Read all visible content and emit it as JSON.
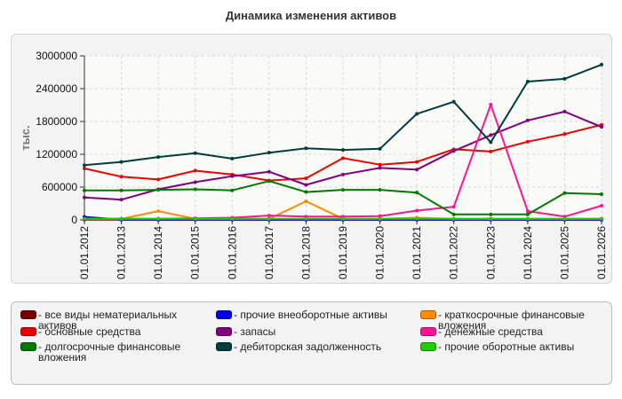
{
  "chart_data": {
    "type": "line",
    "title": "Динамика изменения активов",
    "ylabel": "тыс.",
    "xlabel": "",
    "ylim": [
      0,
      3000000
    ],
    "yticks": [
      "0",
      "600000",
      "1200000",
      "1800000",
      "2400000",
      "3000000"
    ],
    "grid": true,
    "legend_position": "bottom",
    "categories": [
      "01.01.2012",
      "01.01.2013",
      "01.01.2014",
      "01.01.2015",
      "01.01.2016",
      "01.01.2017",
      "01.01.2018",
      "01.01.2019",
      "01.01.2020",
      "01.01.2021",
      "01.01.2022",
      "01.01.2023",
      "01.01.2024",
      "01.01.2025",
      "01.01.2026"
    ],
    "series": [
      {
        "name": "- все виды нематериальных активов",
        "color": "#7a0000",
        "values": [
          5000,
          3000,
          2000,
          2000,
          2000,
          2000,
          2000,
          2000,
          2000,
          2000,
          2000,
          2000,
          2000,
          2000,
          2000
        ]
      },
      {
        "name": "- прочие внеоборотные активы",
        "color": "#0000ee",
        "values": [
          55000,
          5000,
          5000,
          5000,
          5000,
          5000,
          5000,
          5000,
          5000,
          5000,
          5000,
          5000,
          5000,
          5000,
          5000
        ]
      },
      {
        "name": "- краткосрочные финансовые вложения",
        "color": "#ff8c00",
        "values": [
          20000,
          20000,
          160000,
          20000,
          20000,
          20000,
          340000,
          20000,
          20000,
          40000,
          20000,
          20000,
          20000,
          20000,
          20000
        ]
      },
      {
        "name": "- основные средства",
        "color": "#ee0000",
        "values": [
          940000,
          790000,
          740000,
          900000,
          830000,
          720000,
          760000,
          1130000,
          1010000,
          1060000,
          1290000,
          1250000,
          1430000,
          1570000,
          1740000
        ]
      },
      {
        "name": "- запасы",
        "color": "#800080",
        "values": [
          410000,
          370000,
          560000,
          690000,
          800000,
          880000,
          640000,
          830000,
          950000,
          920000,
          1260000,
          1550000,
          1820000,
          1980000,
          1700000
        ]
      },
      {
        "name": "- денежные средства",
        "color": "#ff1493",
        "values": [
          20000,
          20000,
          20000,
          30000,
          40000,
          80000,
          60000,
          60000,
          70000,
          170000,
          240000,
          2110000,
          160000,
          60000,
          260000
        ]
      },
      {
        "name": "- долгосрочные финансовые вложения",
        "color": "#007a00",
        "values": [
          540000,
          540000,
          550000,
          560000,
          540000,
          710000,
          510000,
          550000,
          550000,
          500000,
          100000,
          100000,
          100000,
          490000,
          470000
        ]
      },
      {
        "name": "- дебиторская задолженность",
        "color": "#003d3d",
        "values": [
          1000000,
          1060000,
          1150000,
          1220000,
          1120000,
          1230000,
          1310000,
          1280000,
          1300000,
          1940000,
          2160000,
          1420000,
          2530000,
          2580000,
          2840000
        ]
      },
      {
        "name": "- прочие оборотные активы",
        "color": "#22cc00",
        "values": [
          20000,
          20000,
          20000,
          20000,
          20000,
          20000,
          20000,
          20000,
          20000,
          20000,
          20000,
          20000,
          20000,
          20000,
          20000
        ]
      }
    ]
  }
}
